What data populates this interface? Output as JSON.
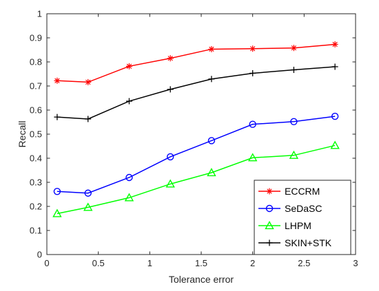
{
  "chart_data": {
    "type": "line",
    "xlabel": "Tolerance error",
    "ylabel": "Recall",
    "xlim": [
      0,
      3
    ],
    "ylim": [
      0,
      1
    ],
    "xticks": [
      "0",
      "0.5",
      "1",
      "1.5",
      "2",
      "2.5",
      "3"
    ],
    "yticks": [
      "0",
      "0.1",
      "0.2",
      "0.3",
      "0.4",
      "0.5",
      "0.6",
      "0.7",
      "0.8",
      "0.9",
      "1"
    ],
    "grid": false,
    "legend_position": "bottom-right",
    "x": [
      0.1,
      0.4,
      0.8,
      1.2,
      1.6,
      2.0,
      2.4,
      2.8
    ],
    "series": [
      {
        "name": "ECCRM",
        "color": "#ff0000",
        "marker": "asterisk",
        "values": [
          0.722,
          0.716,
          0.782,
          0.815,
          0.853,
          0.855,
          0.858,
          0.873
        ]
      },
      {
        "name": "SeDaSC",
        "color": "#0000ff",
        "marker": "circle",
        "values": [
          0.262,
          0.255,
          0.32,
          0.406,
          0.473,
          0.541,
          0.552,
          0.574
        ]
      },
      {
        "name": "LHPM",
        "color": "#00ff00",
        "marker": "triangle",
        "values": [
          0.17,
          0.196,
          0.236,
          0.293,
          0.34,
          0.402,
          0.412,
          0.453
        ]
      },
      {
        "name": "SKIN+STK",
        "color": "#000000",
        "marker": "plus",
        "values": [
          0.571,
          0.563,
          0.637,
          0.686,
          0.729,
          0.753,
          0.767,
          0.78
        ]
      }
    ]
  }
}
